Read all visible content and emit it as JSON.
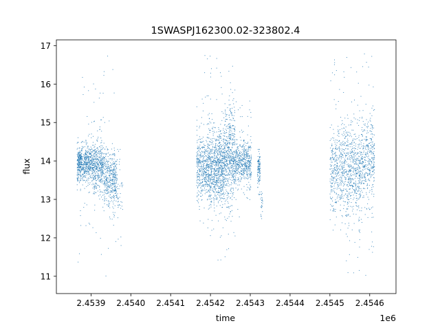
{
  "chart_data": {
    "type": "scatter",
    "title": "1SWASPJ162300.02-323802.4",
    "xlabel": "time",
    "ylabel": "flux",
    "x_offset_label": "1e6",
    "xlim": [
      2453813,
      2454666
    ],
    "ylim": [
      10.55,
      17.15
    ],
    "x_ticks": [
      2.4539,
      2.454,
      2.4541,
      2.4542,
      2.4543,
      2.4544,
      2.4545,
      2.4546
    ],
    "x_tick_labels": [
      "2.4539",
      "2.4540",
      "2.4541",
      "2.4542",
      "2.4543",
      "2.4544",
      "2.4545",
      "2.4546"
    ],
    "y_ticks": [
      11,
      12,
      13,
      14,
      15,
      16,
      17
    ],
    "y_tick_labels": [
      "11",
      "12",
      "13",
      "14",
      "15",
      "16",
      "17"
    ],
    "grid": false,
    "marker_color": "#1f77b4",
    "series": [
      {
        "clusters": [
          {
            "x_range": [
              2453865,
              2453878
            ],
            "y_center": 13.95,
            "y_spread": 0.22,
            "count": 260,
            "y_min": 11.1,
            "y_max": 15.3
          },
          {
            "x_range": [
              2453878,
              2453905
            ],
            "y_center": 13.9,
            "y_spread": 0.25,
            "count": 380,
            "y_min": 12.0,
            "y_max": 16.3
          },
          {
            "x_range": [
              2453905,
              2453932
            ],
            "y_center": 13.85,
            "y_spread": 0.32,
            "count": 420,
            "y_min": 11.5,
            "y_max": 16.2
          },
          {
            "x_range": [
              2453932,
              2453966
            ],
            "y_center": 13.55,
            "y_spread": 0.38,
            "count": 430,
            "y_min": 10.9,
            "y_max": 16.8
          },
          {
            "x_range": [
              2453966,
              2453980
            ],
            "y_center": 13.1,
            "y_spread": 0.5,
            "count": 40,
            "y_min": 11.8,
            "y_max": 14.3
          },
          {
            "x_range": [
              2454165,
              2454192
            ],
            "y_center": 13.8,
            "y_spread": 0.4,
            "count": 380,
            "y_min": 12.3,
            "y_max": 16.8
          },
          {
            "x_range": [
              2454192,
              2454232
            ],
            "y_center": 13.8,
            "y_spread": 0.5,
            "count": 820,
            "y_min": 10.95,
            "y_max": 16.85
          },
          {
            "x_range": [
              2454232,
              2454262
            ],
            "y_center": 14.1,
            "y_spread": 0.6,
            "count": 600,
            "y_min": 11.5,
            "y_max": 16.75
          },
          {
            "x_range": [
              2454262,
              2454303
            ],
            "y_center": 13.95,
            "y_spread": 0.28,
            "count": 520,
            "y_min": 12.4,
            "y_max": 15.6
          },
          {
            "x_range": [
              2454318,
              2454325
            ],
            "y_center": 13.8,
            "y_spread": 0.25,
            "count": 110,
            "y_min": 13.1,
            "y_max": 14.3
          },
          {
            "x_range": [
              2454326,
              2454331
            ],
            "y_center": 12.9,
            "y_spread": 0.2,
            "count": 25,
            "y_min": 12.5,
            "y_max": 13.2
          },
          {
            "x_range": [
              2454500,
              2454540
            ],
            "y_center": 13.8,
            "y_spread": 0.55,
            "count": 450,
            "y_min": 12.2,
            "y_max": 16.8
          },
          {
            "x_range": [
              2454540,
              2454580
            ],
            "y_center": 13.8,
            "y_spread": 0.6,
            "count": 520,
            "y_min": 10.9,
            "y_max": 16.75
          },
          {
            "x_range": [
              2454580,
              2454612
            ],
            "y_center": 14.1,
            "y_spread": 0.55,
            "count": 380,
            "y_min": 11.0,
            "y_max": 16.9
          }
        ]
      }
    ]
  }
}
